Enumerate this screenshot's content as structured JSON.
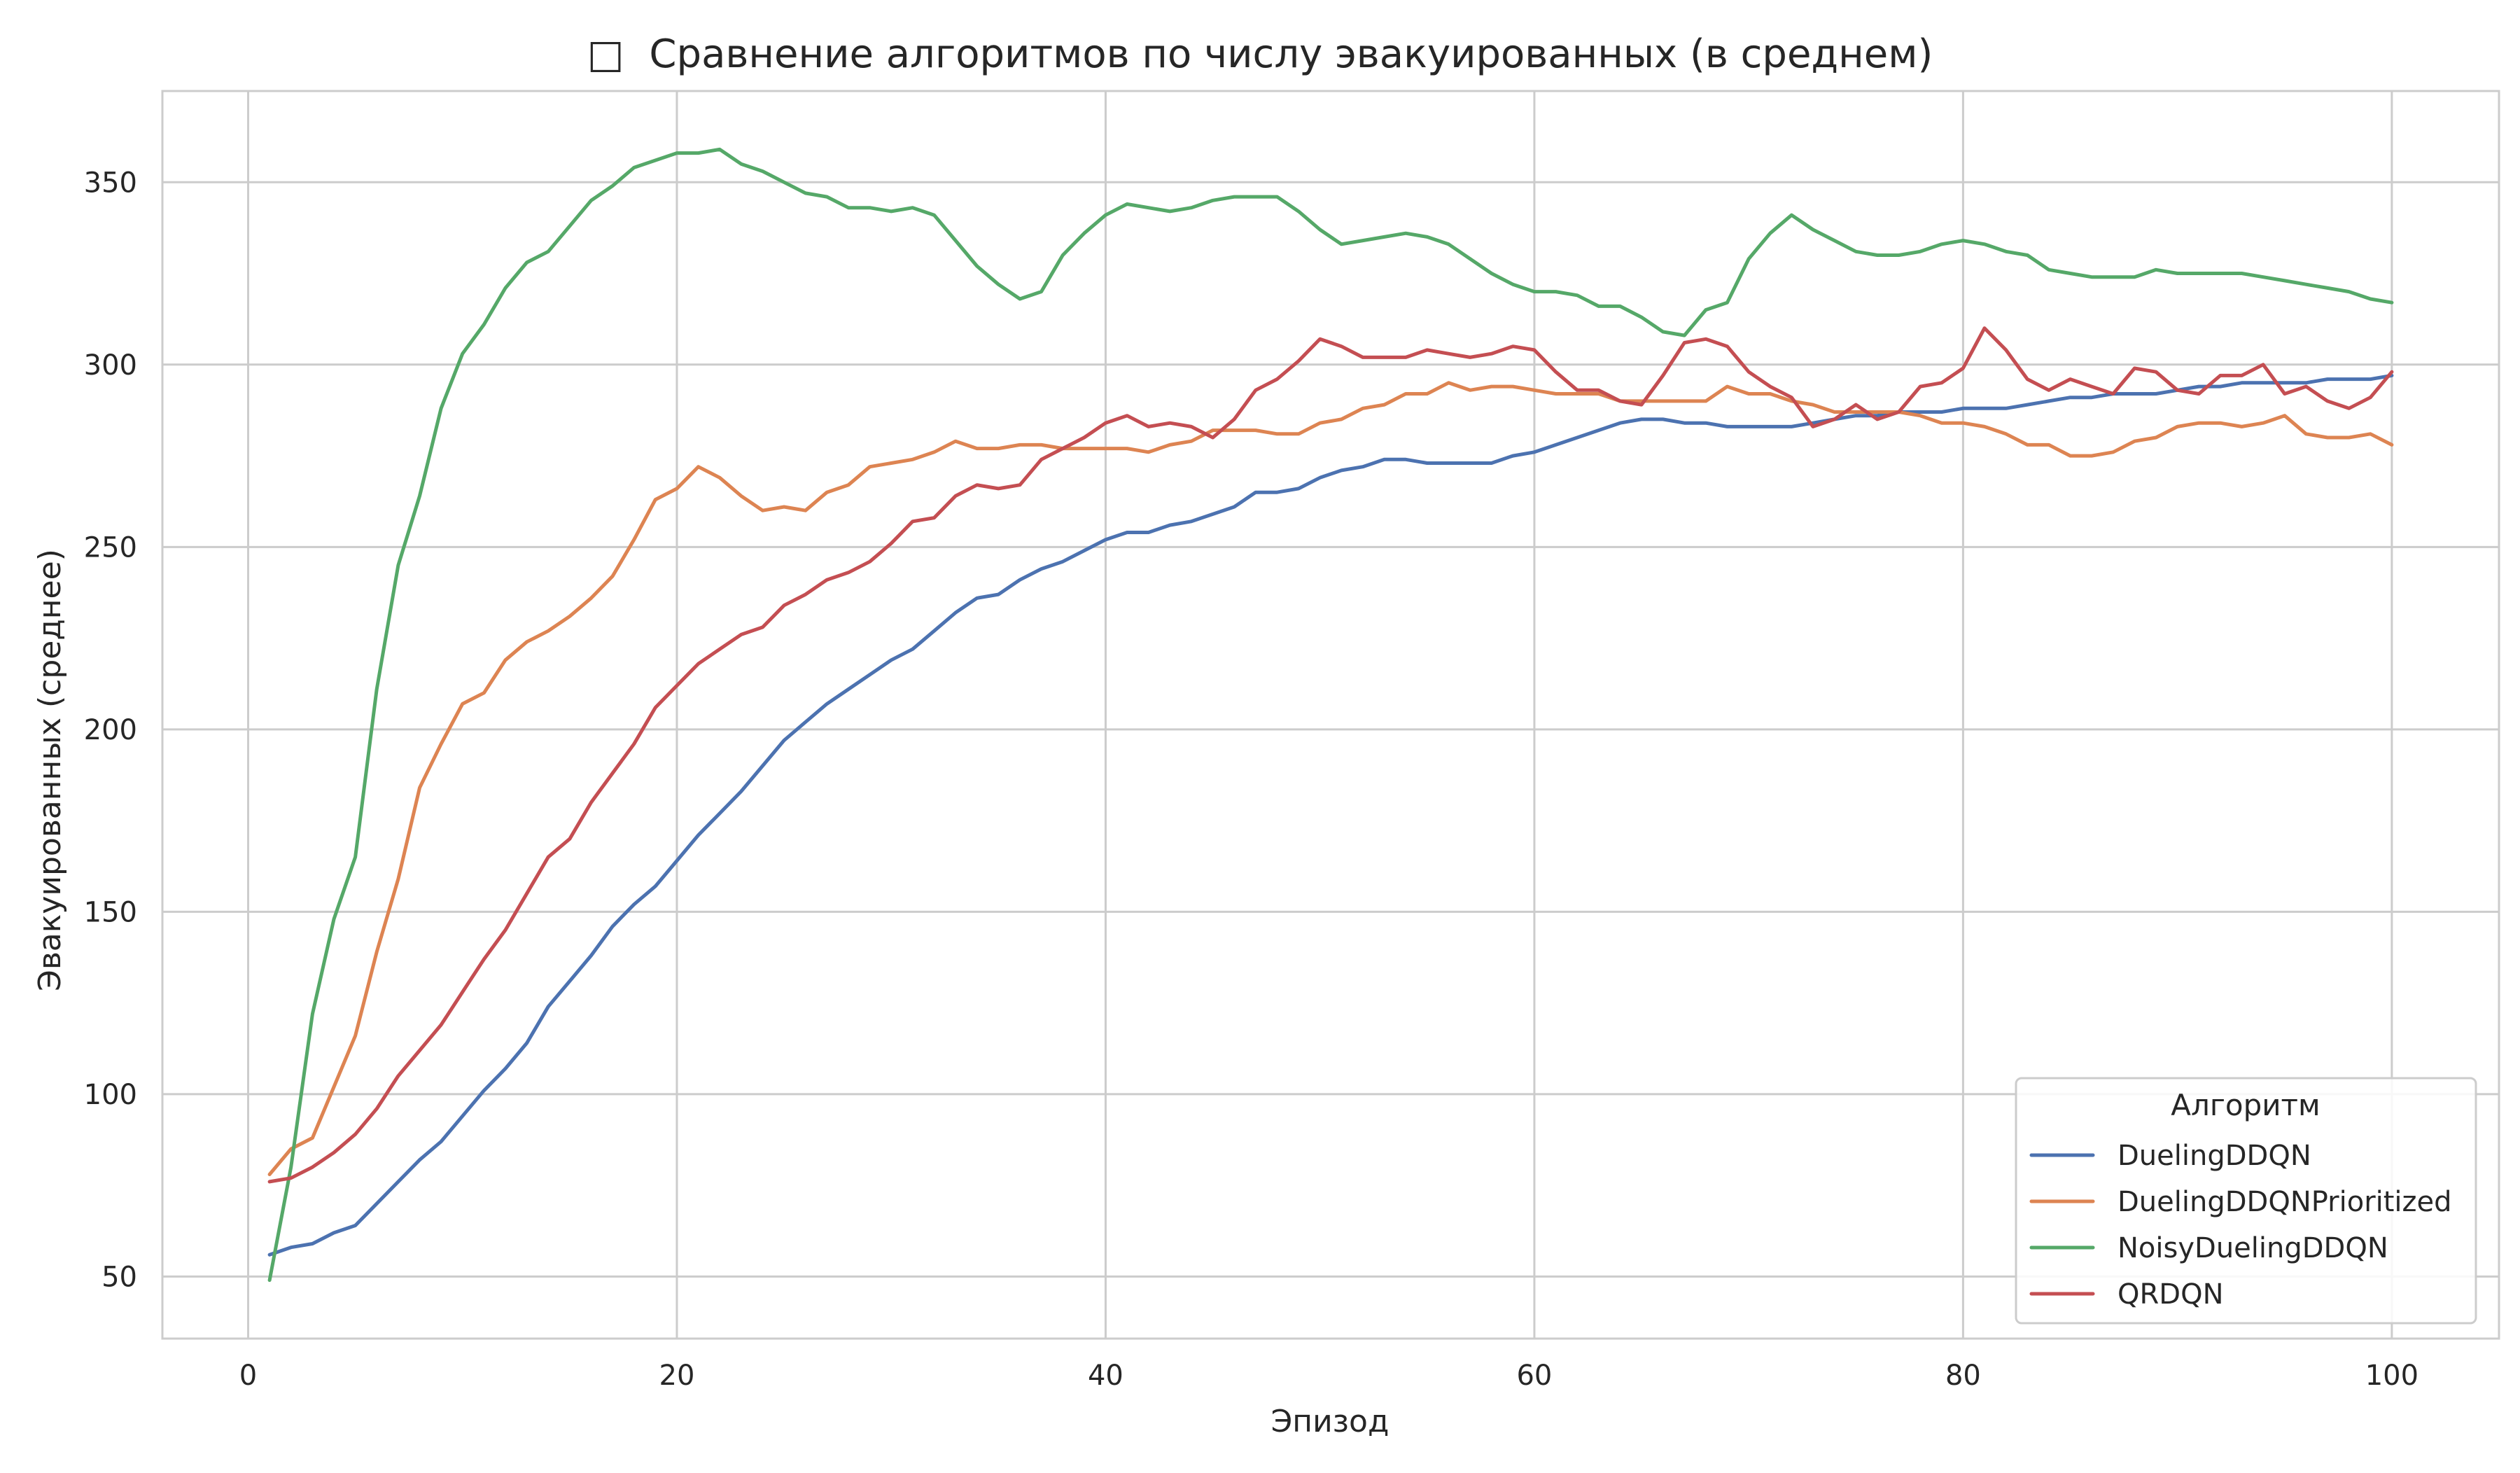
{
  "chart_data": {
    "type": "line",
    "title_icon": "□",
    "title": "Сравнение алгоритмов по числу эвакуированных (в среднем)",
    "xlabel": "Эпизод",
    "ylabel": "Эвакуированных (среднее)",
    "xlim": [
      -4,
      105
    ],
    "ylim": [
      33,
      375
    ],
    "xticks": [
      0,
      20,
      40,
      60,
      80,
      100
    ],
    "yticks": [
      50,
      100,
      150,
      200,
      250,
      300,
      350
    ],
    "grid": true,
    "legend_title": "Алгоритм",
    "legend_position": "lower-right",
    "series": [
      {
        "name": "DuelingDDQN",
        "color": "#4c72b0",
        "values": [
          56,
          58,
          59,
          62,
          64,
          70,
          76,
          82,
          87,
          94,
          101,
          107,
          114,
          124,
          131,
          138,
          146,
          152,
          157,
          164,
          171,
          177,
          183,
          190,
          197,
          202,
          207,
          211,
          215,
          219,
          222,
          227,
          232,
          236,
          237,
          241,
          244,
          246,
          249,
          252,
          254,
          254,
          256,
          257,
          259,
          261,
          265,
          265,
          266,
          269,
          271,
          272,
          274,
          274,
          273,
          273,
          273,
          273,
          275,
          276,
          278,
          280,
          282,
          284,
          285,
          285,
          284,
          284,
          283,
          283,
          283,
          283,
          284,
          285,
          286,
          286,
          287,
          287,
          287,
          288,
          288,
          288,
          289,
          290,
          291,
          291,
          292,
          292,
          292,
          293,
          294,
          294,
          295,
          295,
          295,
          295,
          296,
          296,
          296,
          297
        ]
      },
      {
        "name": "DuelingDDQNPrioritized",
        "color": "#dd8452",
        "values": [
          78,
          85,
          88,
          102,
          116,
          139,
          159,
          184,
          196,
          207,
          210,
          219,
          224,
          227,
          231,
          236,
          242,
          252,
          263,
          266,
          272,
          269,
          264,
          260,
          261,
          260,
          265,
          267,
          272,
          273,
          274,
          276,
          279,
          277,
          277,
          278,
          278,
          277,
          277,
          277,
          277,
          276,
          278,
          279,
          282,
          282,
          282,
          281,
          281,
          284,
          285,
          288,
          289,
          292,
          292,
          295,
          293,
          294,
          294,
          293,
          292,
          292,
          292,
          290,
          290,
          290,
          290,
          290,
          294,
          292,
          292,
          290,
          289,
          287,
          287,
          287,
          287,
          286,
          284,
          284,
          283,
          281,
          278,
          278,
          275,
          275,
          276,
          279,
          280,
          283,
          284,
          284,
          283,
          284,
          286,
          281,
          280,
          280,
          281,
          278
        ]
      },
      {
        "name": "NoisyDuelingDDQN",
        "color": "#55a868",
        "values": [
          49,
          80,
          122,
          148,
          165,
          211,
          245,
          264,
          288,
          303,
          311,
          321,
          328,
          331,
          338,
          345,
          349,
          354,
          356,
          358,
          358,
          359,
          355,
          353,
          350,
          347,
          346,
          343,
          343,
          342,
          343,
          341,
          334,
          327,
          322,
          318,
          320,
          330,
          336,
          341,
          344,
          343,
          342,
          343,
          345,
          346,
          346,
          346,
          342,
          337,
          333,
          334,
          335,
          336,
          335,
          333,
          329,
          325,
          322,
          320,
          320,
          319,
          316,
          316,
          313,
          309,
          308,
          315,
          317,
          329,
          336,
          341,
          337,
          334,
          331,
          330,
          330,
          331,
          333,
          334,
          333,
          331,
          330,
          326,
          325,
          324,
          324,
          324,
          326,
          325,
          325,
          325,
          325,
          324,
          323,
          322,
          321,
          320,
          318,
          317
        ]
      },
      {
        "name": "QRDQN",
        "color": "#c44e52",
        "values": [
          76,
          77,
          80,
          84,
          89,
          96,
          105,
          112,
          119,
          128,
          137,
          145,
          155,
          165,
          170,
          180,
          188,
          196,
          206,
          212,
          218,
          222,
          226,
          228,
          234,
          237,
          241,
          243,
          246,
          251,
          257,
          258,
          264,
          267,
          266,
          267,
          274,
          277,
          280,
          284,
          286,
          283,
          284,
          283,
          280,
          285,
          293,
          296,
          301,
          307,
          305,
          302,
          302,
          302,
          304,
          303,
          302,
          303,
          305,
          304,
          298,
          293,
          293,
          290,
          289,
          297,
          306,
          307,
          305,
          298,
          294,
          291,
          283,
          285,
          289,
          285,
          287,
          294,
          295,
          299,
          310,
          304,
          296,
          293,
          296,
          294,
          292,
          299,
          298,
          293,
          292,
          297,
          297,
          300,
          292,
          294,
          290,
          288,
          291,
          298
        ]
      }
    ]
  }
}
